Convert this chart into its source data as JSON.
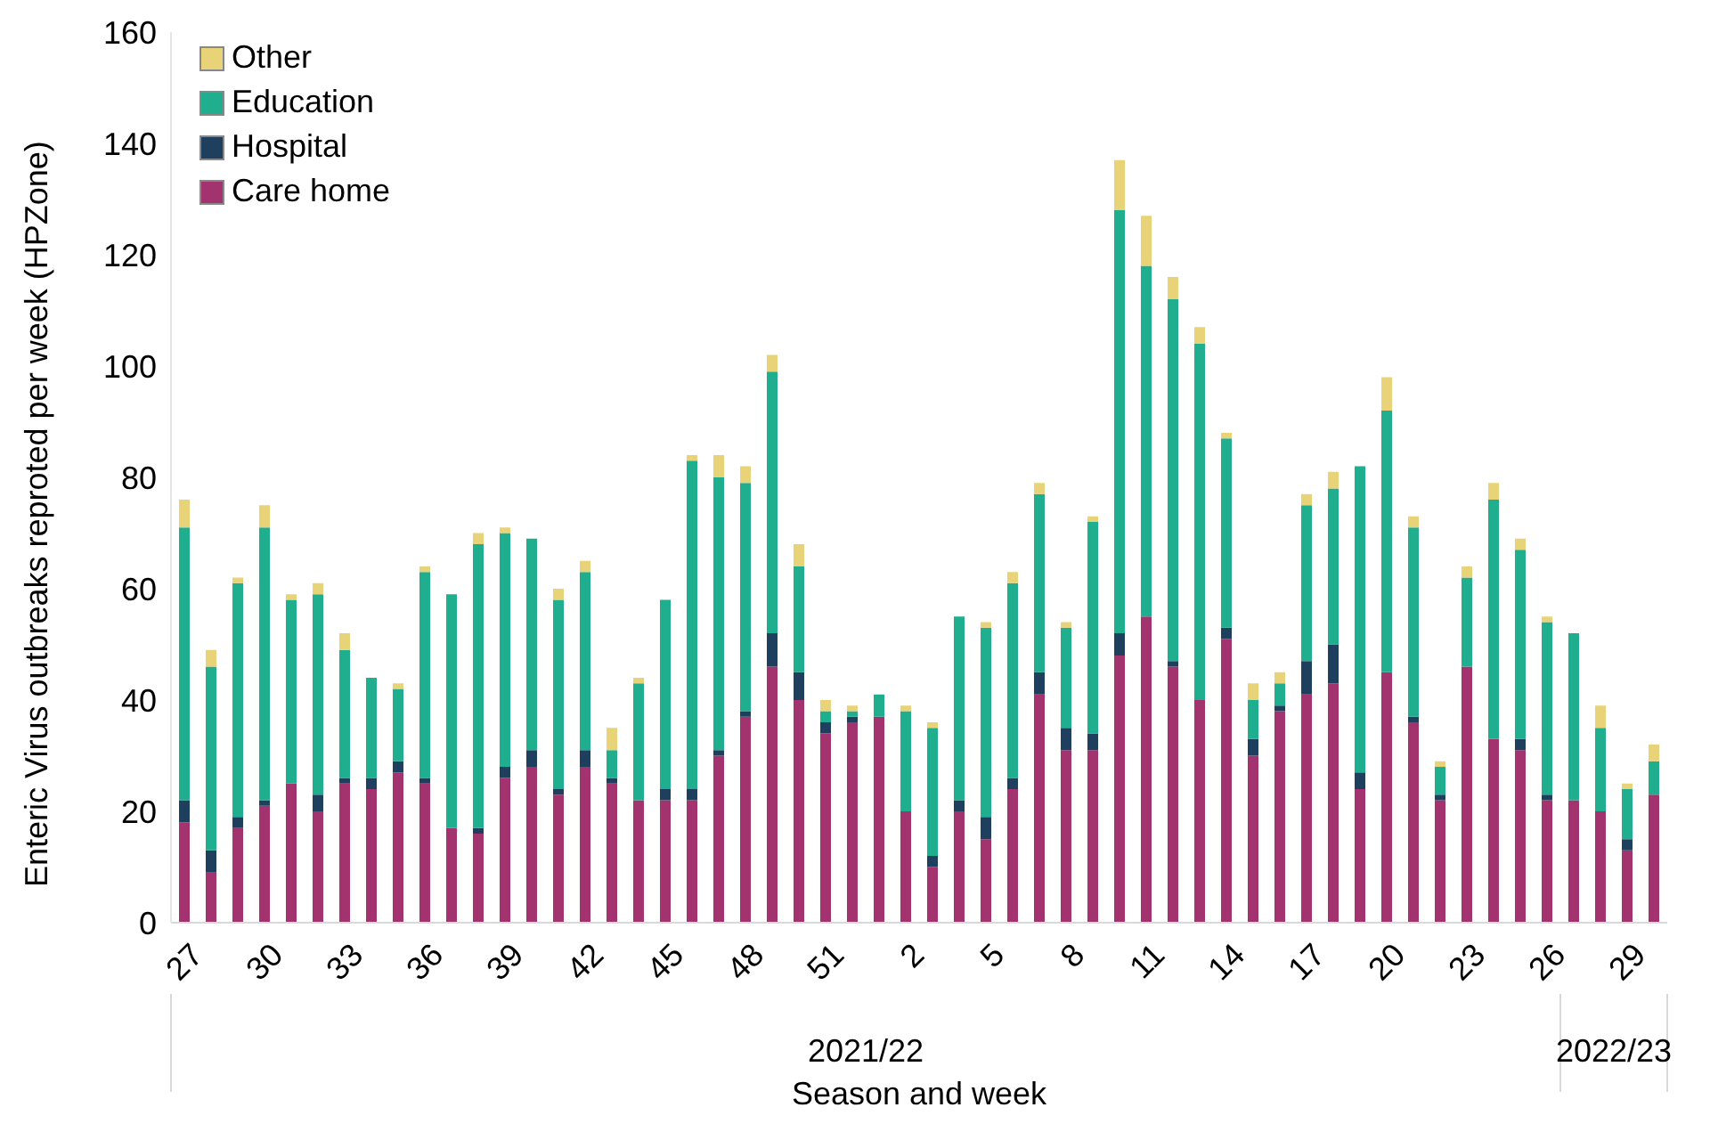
{
  "chart_data": {
    "type": "bar",
    "stacked": true,
    "xlabel": "Season and week",
    "ylabel": "Enteric Virus outbreaks reproted per week (HPZone)",
    "categories": [
      "27",
      null,
      null,
      "30",
      null,
      null,
      "33",
      null,
      null,
      "36",
      null,
      null,
      "39",
      null,
      null,
      "42",
      null,
      null,
      "45",
      null,
      null,
      "48",
      null,
      null,
      "51",
      null,
      null,
      "2",
      null,
      null,
      "5",
      null,
      null,
      "8",
      null,
      null,
      "11",
      null,
      null,
      "14",
      null,
      null,
      "17",
      null,
      null,
      "20",
      null,
      null,
      "23",
      null,
      null,
      "26",
      null,
      null,
      "29",
      null
    ],
    "annotations": [
      "2021/22",
      "2022/23"
    ],
    "ylim": [
      0,
      160
    ],
    "yticks": [
      0,
      20,
      40,
      60,
      80,
      100,
      120,
      140,
      160
    ],
    "grid": false,
    "legend": "top left",
    "series": [
      {
        "name": "Care home",
        "color": "#a3336f",
        "values": [
          18,
          9,
          17,
          21,
          25,
          20,
          25,
          24,
          27,
          25,
          17,
          16,
          26,
          28,
          23,
          28,
          25,
          22,
          22,
          22,
          30,
          37,
          46,
          40,
          34,
          36,
          37,
          20,
          10,
          20,
          15,
          24,
          41,
          31,
          31,
          48,
          55,
          46,
          40,
          51,
          30,
          38,
          41,
          43,
          24,
          45,
          36,
          22,
          46,
          33,
          31,
          22,
          22,
          20,
          13,
          23
        ]
      },
      {
        "name": "Hospital",
        "color": "#1f3f5e",
        "values": [
          4,
          4,
          2,
          1,
          0,
          3,
          1,
          2,
          2,
          1,
          0,
          1,
          2,
          3,
          1,
          3,
          1,
          0,
          2,
          2,
          1,
          1,
          6,
          5,
          2,
          1,
          0,
          0,
          2,
          2,
          4,
          2,
          4,
          4,
          3,
          4,
          0,
          1,
          0,
          2,
          3,
          1,
          6,
          7,
          3,
          0,
          1,
          1,
          0,
          0,
          2,
          1,
          0,
          0,
          2,
          0
        ]
      },
      {
        "name": "Education",
        "color": "#1fae8e",
        "values": [
          49,
          33,
          42,
          49,
          33,
          36,
          23,
          18,
          13,
          37,
          42,
          51,
          42,
          38,
          34,
          32,
          5,
          21,
          34,
          59,
          49,
          41,
          47,
          19,
          2,
          1,
          4,
          18,
          23,
          33,
          34,
          35,
          32,
          18,
          38,
          76,
          63,
          65,
          64,
          34,
          7,
          4,
          28,
          28,
          55,
          47,
          34,
          5,
          16,
          43,
          34,
          31,
          30,
          15,
          9,
          6
        ]
      },
      {
        "name": "Other",
        "color": "#e8d379",
        "values": [
          5,
          3,
          1,
          4,
          1,
          2,
          3,
          0,
          1,
          1,
          0,
          2,
          1,
          0,
          2,
          2,
          4,
          1,
          0,
          1,
          4,
          3,
          3,
          4,
          2,
          1,
          0,
          1,
          1,
          0,
          1,
          2,
          2,
          1,
          1,
          9,
          9,
          4,
          3,
          1,
          3,
          2,
          2,
          3,
          0,
          6,
          2,
          1,
          2,
          3,
          2,
          1,
          0,
          4,
          1,
          3
        ]
      }
    ]
  }
}
